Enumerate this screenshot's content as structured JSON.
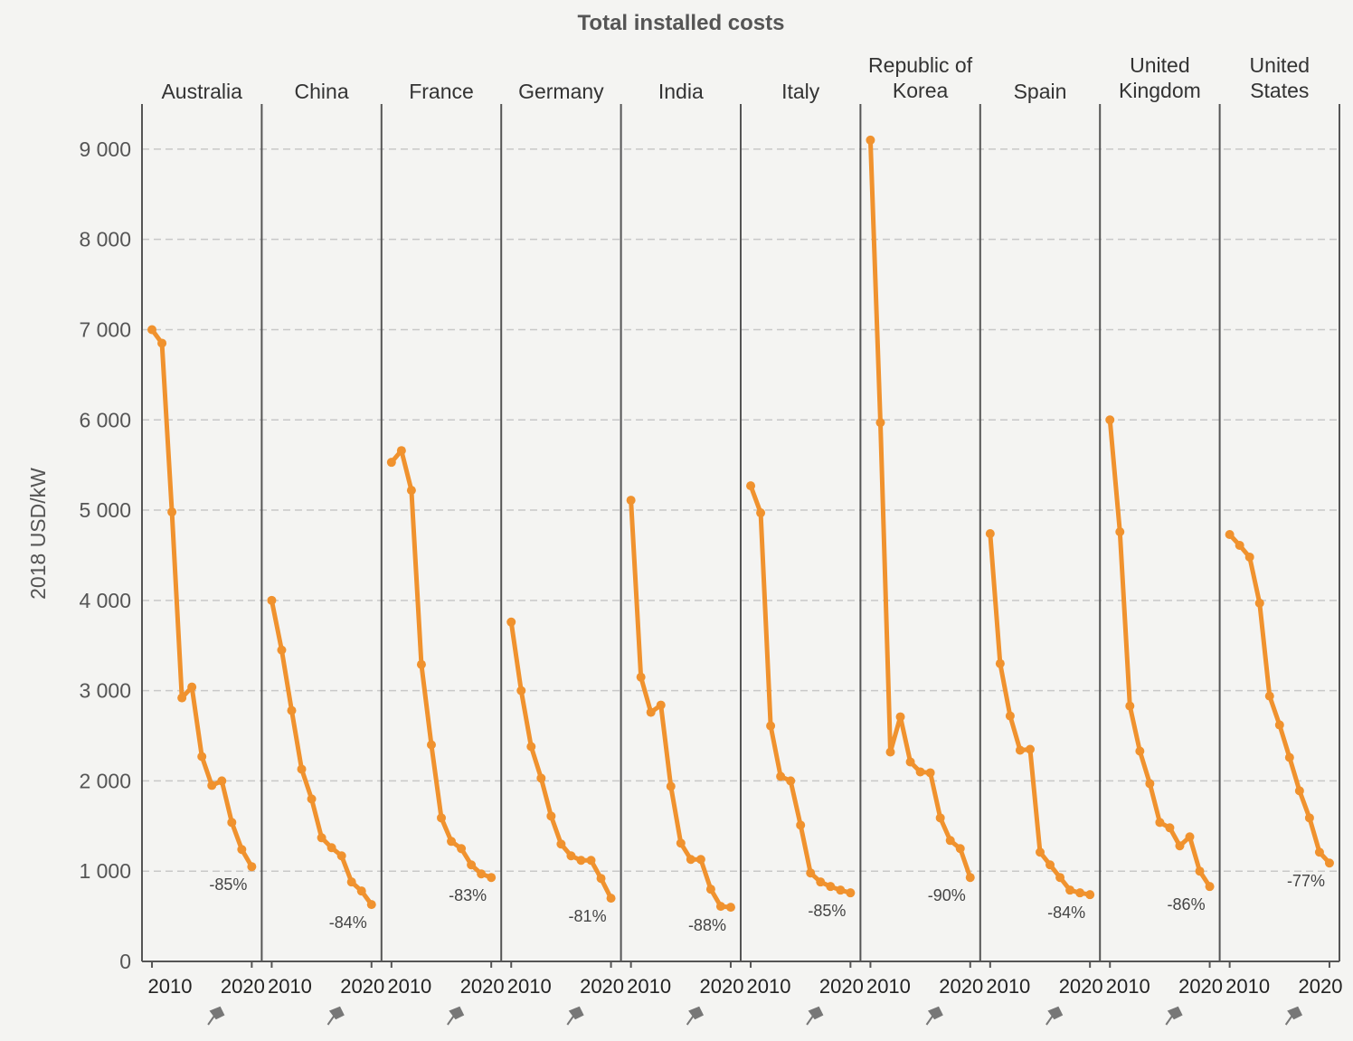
{
  "chart_data": {
    "type": "line",
    "title": "Total installed costs",
    "ylabel": "2018 USD/kW",
    "ylim": [
      0,
      9500
    ],
    "yticks": [
      0,
      1000,
      2000,
      3000,
      4000,
      5000,
      6000,
      7000,
      8000,
      9000
    ],
    "ytick_labels": [
      "0",
      "1 000",
      "2 000",
      "3 000",
      "4 000",
      "5 000",
      "6 000",
      "7 000",
      "8 000",
      "9 000"
    ],
    "xlim": [
      2009,
      2021
    ],
    "xticks": [
      2010,
      2020
    ],
    "xtick_labels": [
      "2010",
      "2020"
    ],
    "grid": true,
    "x": [
      2010,
      2011,
      2012,
      2013,
      2014,
      2015,
      2016,
      2017,
      2018,
      2019,
      2020
    ],
    "panels": [
      {
        "label_lines": [
          "Australia"
        ],
        "change": "-85%",
        "values": [
          7000,
          6850,
          4980,
          2920,
          3040,
          2270,
          1950,
          2000,
          1540,
          1240,
          1050
        ]
      },
      {
        "label_lines": [
          "China"
        ],
        "change": "-84%",
        "values": [
          4000,
          3450,
          2780,
          2130,
          1800,
          1370,
          1260,
          1170,
          880,
          780,
          630
        ]
      },
      {
        "label_lines": [
          "France"
        ],
        "change": "-83%",
        "values": [
          5530,
          5660,
          5220,
          3290,
          2400,
          1590,
          1330,
          1250,
          1070,
          970,
          930
        ]
      },
      {
        "label_lines": [
          "Germany"
        ],
        "change": "-81%",
        "values": [
          3760,
          3000,
          2380,
          2030,
          1610,
          1300,
          1170,
          1120,
          1120,
          920,
          700
        ]
      },
      {
        "label_lines": [
          "India"
        ],
        "change": "-88%",
        "values": [
          5110,
          3150,
          2760,
          2840,
          1940,
          1310,
          1130,
          1130,
          800,
          610,
          600
        ]
      },
      {
        "label_lines": [
          "Italy"
        ],
        "change": "-85%",
        "values": [
          5270,
          4970,
          2610,
          2050,
          2000,
          1510,
          980,
          880,
          830,
          790,
          760
        ]
      },
      {
        "label_lines": [
          "Republic of",
          "Korea"
        ],
        "change": "-90%",
        "values": [
          9100,
          5970,
          2320,
          2710,
          2210,
          2100,
          2090,
          1590,
          1340,
          1250,
          930
        ]
      },
      {
        "label_lines": [
          "Spain"
        ],
        "change": "-84%",
        "values": [
          4740,
          3300,
          2720,
          2340,
          2350,
          1210,
          1070,
          930,
          790,
          760,
          740
        ]
      },
      {
        "label_lines": [
          "United",
          "Kingdom"
        ],
        "change": "-86%",
        "values": [
          6000,
          4760,
          2830,
          2330,
          1970,
          1540,
          1480,
          1280,
          1380,
          1000,
          830
        ]
      },
      {
        "label_lines": [
          "United",
          "States"
        ],
        "change": "-77%",
        "values": [
          4730,
          4610,
          4480,
          3970,
          2940,
          2620,
          2260,
          1890,
          1590,
          1210,
          1090
        ]
      }
    ]
  }
}
